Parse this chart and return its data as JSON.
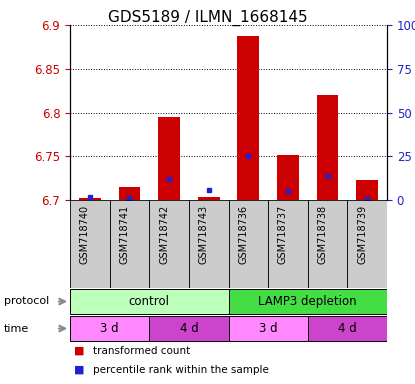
{
  "title": "GDS5189 / ILMN_1668145",
  "samples": [
    "GSM718740",
    "GSM718741",
    "GSM718742",
    "GSM718743",
    "GSM718736",
    "GSM718737",
    "GSM718738",
    "GSM718739"
  ],
  "red_values": [
    6.702,
    6.715,
    6.795,
    6.703,
    6.887,
    6.752,
    6.82,
    6.723
  ],
  "blue_values": [
    6.703,
    6.702,
    6.724,
    6.712,
    6.75,
    6.71,
    6.728,
    6.701
  ],
  "ylim": [
    6.7,
    6.9
  ],
  "yticks": [
    6.7,
    6.75,
    6.8,
    6.85,
    6.9
  ],
  "ytick_labels": [
    "6.7",
    "6.75",
    "6.8",
    "6.85",
    "6.9"
  ],
  "y2ticks": [
    0,
    25,
    50,
    75,
    100
  ],
  "y2tick_labels": [
    "0",
    "25",
    "50",
    "75",
    "100%"
  ],
  "bar_color": "#cc0000",
  "blue_color": "#2222cc",
  "bar_width": 0.55,
  "protocol_labels": [
    "control",
    "LAMP3 depletion"
  ],
  "protocol_colors": [
    "#bbffbb",
    "#44dd44"
  ],
  "time_labels": [
    "3 d",
    "4 d",
    "3 d",
    "4 d"
  ],
  "time_colors": [
    "#ff88ff",
    "#cc44cc",
    "#ff88ff",
    "#cc44cc"
  ],
  "legend_red": "transformed count",
  "legend_blue": "percentile rank within the sample",
  "title_fontsize": 11,
  "axis_color_red": "#cc0000",
  "axis_color_blue": "#2222cc",
  "sample_bg": "#cccccc",
  "left_label_color": "#888888"
}
